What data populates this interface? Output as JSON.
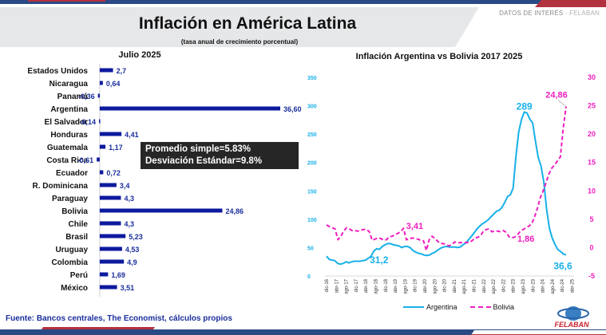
{
  "header": {
    "brand": "DATOS DE INTERÉS",
    "brand_sep": " - ",
    "brand_org": "FELABAN",
    "title": "Inflación en América Latina",
    "subtitle": "(tasa anual de crecimiento porcentual)"
  },
  "stats_box": {
    "line1": "Promedio simple=5.83%",
    "line2": "Desviación Estándar=9.8%"
  },
  "source": "Fuente: Bancos centrales, The Economist, cálculos propios",
  "logo_text": "FELABAN",
  "colors": {
    "bar": "#0d1a9e",
    "bar_label": "#1a2e9c",
    "argentina": "#18b0e8",
    "bolivia": "#ee1fbf",
    "navy": "#2a4a86",
    "red": "#b3323f"
  },
  "chart_data": [
    {
      "type": "bar",
      "orientation": "horizontal",
      "title": "Julio 2025",
      "categories": [
        "Estados Unidos",
        "Nicaragua",
        "Panamá",
        "Argentina",
        "El Salvador",
        "Honduras",
        "Guatemala",
        "Costa Rica",
        "Ecuador",
        "R. Dominicana",
        "Paraguay",
        "Bolivia",
        "Chile",
        "Brasil",
        "Uruguay",
        "Colombia",
        "Perú",
        "México"
      ],
      "values": [
        2.7,
        0.64,
        -0.36,
        36.6,
        -0.14,
        4.41,
        1.17,
        -0.61,
        0.72,
        3.4,
        4.3,
        24.86,
        4.3,
        5.23,
        4.53,
        4.9,
        1.69,
        3.51
      ],
      "value_labels": [
        "2,7",
        "0,64",
        "-0,36",
        "36,60",
        "-0,14",
        "4,41",
        "1,17",
        "-0,61",
        "0,72",
        "3,4",
        "4,3",
        "24,86",
        "4,3",
        "5,23",
        "4,53",
        "4,9",
        "1,69",
        "3,51"
      ],
      "xlim": [
        -5,
        40
      ],
      "xticks": [
        "-5",
        "0",
        "5",
        "10",
        "15",
        "20",
        "25",
        "30",
        "35",
        "40"
      ],
      "xtick_values": [
        -5,
        0,
        5,
        10,
        15,
        20,
        25,
        30,
        35,
        40
      ],
      "xlabel": "",
      "ylabel": "",
      "grid": false
    },
    {
      "type": "line",
      "title": "Inflación Argentina vs Bolivia 2017 2025",
      "x_labels": [
        "dic-16",
        "abr-17",
        "ago-17",
        "dic-17",
        "abr-18",
        "ago-18",
        "dic-18",
        "abr-19",
        "ago-19",
        "dic-19",
        "abr-20",
        "ago-20",
        "dic-20",
        "abr-21",
        "ago-21",
        "dic-21",
        "abr-22",
        "ago-22",
        "dic-22",
        "abr-23",
        "ago-23",
        "dic-23",
        "abr-24",
        "ago-24",
        "dic-24",
        "abr-25"
      ],
      "x_range": [
        "dic-16",
        "jul-25"
      ],
      "y_left": {
        "lim": [
          0,
          350
        ],
        "ticks": [
          "0",
          "50",
          "100",
          "150",
          "200",
          "250",
          "300",
          "350"
        ],
        "tick_values": [
          0,
          50,
          100,
          150,
          200,
          250,
          300,
          350
        ],
        "color": "#18b0e8"
      },
      "y_right": {
        "lim": [
          -5,
          30
        ],
        "ticks": [
          "-5",
          "0",
          "5",
          "10",
          "15",
          "20",
          "25",
          "30"
        ],
        "tick_values": [
          -5,
          0,
          5,
          10,
          15,
          20,
          25,
          30
        ],
        "color": "#ee1fbf"
      },
      "series": [
        {
          "name": "Argentina",
          "axis": "left",
          "style": "solid",
          "color": "#18b0e8",
          "values": [
            35,
            29,
            28,
            27,
            22,
            21,
            22,
            25,
            23,
            25,
            26,
            26,
            26,
            27,
            28,
            31,
            35,
            44,
            48,
            47,
            52,
            55,
            57,
            57,
            55,
            54,
            53,
            50,
            52,
            52,
            50,
            45,
            42,
            40,
            39,
            37,
            36,
            37,
            40,
            42,
            46,
            49,
            51,
            52,
            51,
            51,
            51,
            50,
            51,
            55,
            58,
            64,
            70,
            76,
            83,
            88,
            92,
            95,
            99,
            104,
            109,
            114,
            116,
            121,
            130,
            140,
            143,
            155,
            211,
            254,
            276,
            289,
            287,
            276,
            270,
            238,
            209,
            194,
            166,
            118,
            84,
            67,
            56,
            47,
            43,
            39,
            37
          ],
          "annotations": [
            {
              "label": "289",
              "point": "peak"
            },
            {
              "label": "31,2",
              "point": "ago-18"
            },
            {
              "label": "36,6",
              "point": "last"
            }
          ]
        },
        {
          "name": "Bolivia",
          "axis": "right",
          "style": "dashed",
          "color": "#ee1fbf",
          "values": [
            4.0,
            3.7,
            3.5,
            3.3,
            1.4,
            2.0,
            2.9,
            3.5,
            3.3,
            3.0,
            3.0,
            2.9,
            3.1,
            3.2,
            3.2,
            2.8,
            1.3,
            1.5,
            1.7,
            1.6,
            1.3,
            1.4,
            1.9,
            2.0,
            2.3,
            2.5,
            2.8,
            3.41,
            1.4,
            1.5,
            1.7,
            1.6,
            1.5,
            1.3,
            1.2,
            -0.5,
            1.4,
            2.0,
            1.6,
            1.1,
            0.7,
            0.7,
            0.5,
            0.3,
            0.6,
            1.0,
            0.8,
            0.9,
            0.8,
            0.9,
            0.9,
            1.2,
            1.7,
            1.8,
            2.1,
            2.9,
            3.2,
            3.3,
            2.8,
            2.9,
            2.9,
            2.8,
            3.0,
            2.7,
            1.9,
            1.7,
            1.86,
            2.3,
            2.9,
            3.2,
            3.5,
            3.8,
            4.2,
            5.5,
            7.0,
            8.9,
            10.0,
            11.5,
            13.0,
            14.0,
            14.6,
            15.3,
            16.0,
            21.0,
            24.86
          ],
          "annotations": [
            {
              "label": "3,41",
              "point": "dic-19"
            },
            {
              "label": "1,86",
              "point": "dic-23"
            },
            {
              "label": "24,86",
              "point": "last"
            }
          ]
        }
      ],
      "legend": {
        "position": "bottom",
        "entries": [
          "Argentina",
          "Bolivia"
        ]
      },
      "grid": false
    }
  ]
}
